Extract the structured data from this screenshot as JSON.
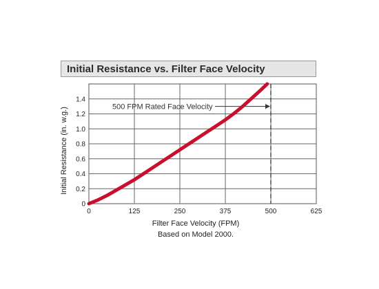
{
  "chart_data": {
    "type": "line",
    "title": "Initial Resistance vs. Filter Face Velocity",
    "xlabel": "Filter Face Velocity (FPM)",
    "subtitle": "Based on Model 2000.",
    "ylabel": "Initial Resistance (in. w.g.)",
    "xlim": [
      0,
      625
    ],
    "ylim": [
      0,
      1.6
    ],
    "xticks": [
      0,
      125,
      250,
      375,
      500,
      625
    ],
    "xtick_labels": [
      "0",
      "125",
      "250",
      "375",
      "500",
      "625"
    ],
    "yticks": [
      0,
      0.2,
      0.4,
      0.6,
      0.8,
      1.0,
      1.2,
      1.4
    ],
    "ytick_labels": [
      "0",
      "0.2",
      "0.4",
      "0.6",
      "0.8",
      "1.0",
      "1.2",
      "1.4"
    ],
    "grid": true,
    "series": [
      {
        "name": "",
        "color": "#c8102e",
        "x": [
          0,
          25,
          50,
          75,
          100,
          125,
          150,
          175,
          200,
          225,
          250,
          275,
          300,
          325,
          350,
          375,
          400,
          425,
          450,
          475,
          490
        ],
        "y": [
          0,
          0.05,
          0.11,
          0.18,
          0.25,
          0.32,
          0.4,
          0.48,
          0.56,
          0.64,
          0.72,
          0.8,
          0.88,
          0.96,
          1.04,
          1.12,
          1.21,
          1.31,
          1.42,
          1.53,
          1.6
        ]
      }
    ],
    "annotations": [
      {
        "text": "500 FPM Rated Face Velocity",
        "x": 500,
        "y": 1.3,
        "style": "dashed-vertical-line-with-arrow"
      }
    ]
  }
}
